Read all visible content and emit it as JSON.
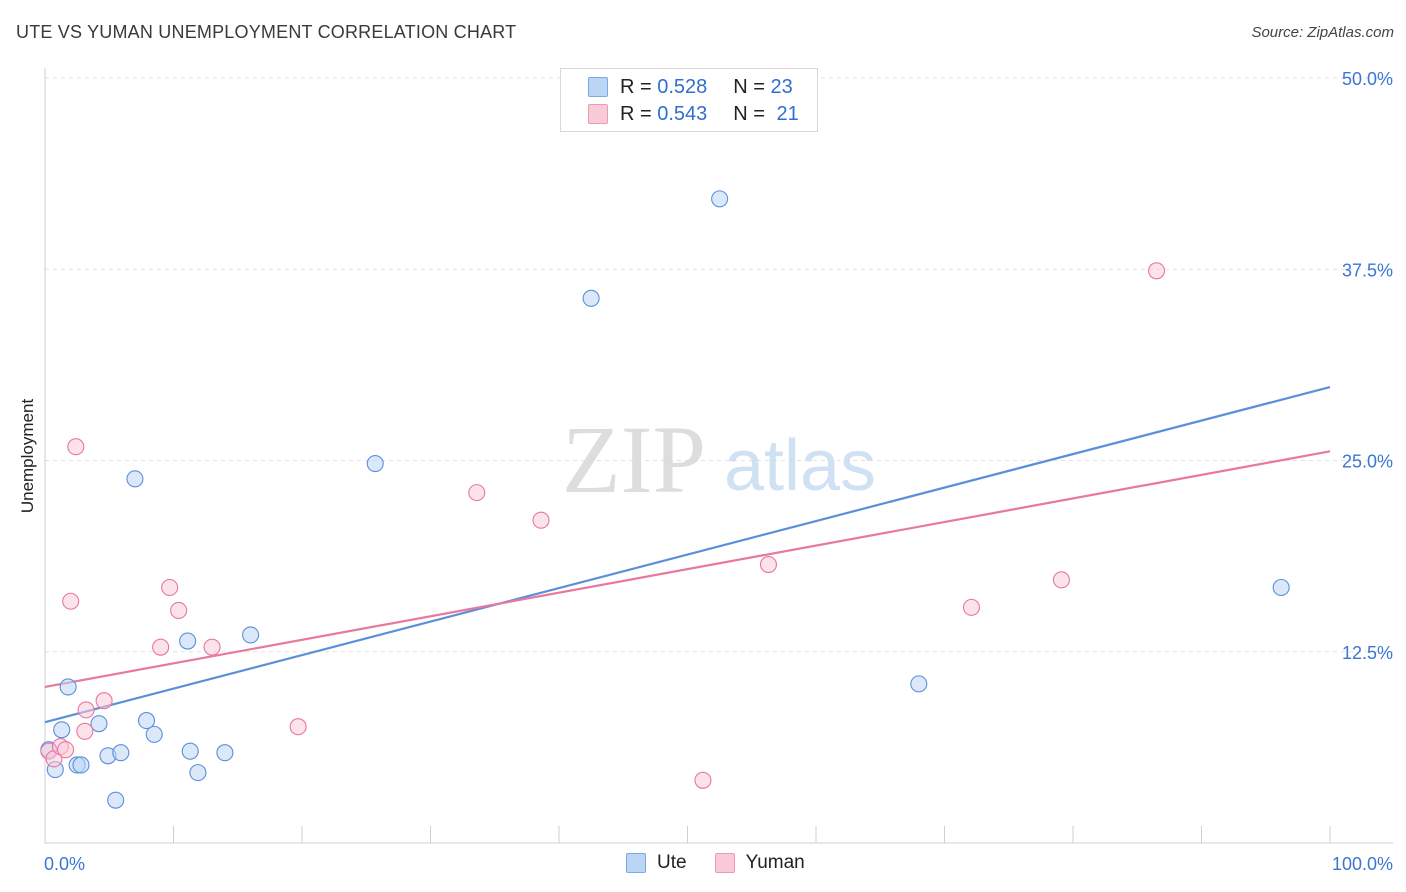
{
  "header": {
    "title": "UTE VS YUMAN UNEMPLOYMENT CORRELATION CHART",
    "source": "Source: ZipAtlas.com"
  },
  "watermark": {
    "zip": "ZIP",
    "atlas": "atlas"
  },
  "stats_legend": [
    {
      "r_label": "R = ",
      "r_value": "0.528",
      "n_label": "N = ",
      "n_value": "23",
      "color": "#5b8fd9"
    },
    {
      "r_label": "R = ",
      "r_value": "0.543",
      "n_label": "N = ",
      "n_value": "21",
      "color": "#e8789e"
    }
  ],
  "chart_data": {
    "type": "scatter",
    "title": "UTE VS YUMAN UNEMPLOYMENT CORRELATION CHART",
    "xlabel": "",
    "ylabel": "Unemployment",
    "xlim": [
      0,
      100
    ],
    "ylim": [
      0,
      50
    ],
    "x_tick_labels": [
      {
        "x": 0,
        "label": "0.0%"
      },
      {
        "x": 100,
        "label": "100.0%"
      }
    ],
    "y_tick_labels": [
      {
        "y": 12.5,
        "label": "12.5%"
      },
      {
        "y": 25.0,
        "label": "25.0%"
      },
      {
        "y": 37.5,
        "label": "37.5%"
      },
      {
        "y": 50.0,
        "label": "50.0%"
      }
    ],
    "grid": true,
    "legend_position": "bottom-center",
    "series": [
      {
        "name": "Ute",
        "color": "#5b8fd9",
        "fill": "#bcd5f5",
        "points": [
          [
            0.3,
            6.1
          ],
          [
            0.8,
            4.8
          ],
          [
            1.3,
            7.4
          ],
          [
            1.8,
            10.2
          ],
          [
            2.5,
            5.1
          ],
          [
            2.8,
            5.1
          ],
          [
            4.2,
            7.8
          ],
          [
            4.9,
            5.7
          ],
          [
            5.5,
            2.8
          ],
          [
            5.9,
            5.9
          ],
          [
            7.0,
            23.8
          ],
          [
            7.9,
            8.0
          ],
          [
            8.5,
            7.1
          ],
          [
            11.1,
            13.2
          ],
          [
            11.3,
            6.0
          ],
          [
            11.9,
            4.6
          ],
          [
            14.0,
            5.9
          ],
          [
            16.0,
            13.6
          ],
          [
            25.7,
            24.8
          ],
          [
            42.5,
            35.6
          ],
          [
            52.5,
            42.1
          ],
          [
            68.0,
            10.4
          ],
          [
            96.2,
            16.7
          ]
        ],
        "trend": {
          "x0": 0,
          "y0": 7.9,
          "x1": 100,
          "y1": 29.8
        }
      },
      {
        "name": "Yuman",
        "color": "#e8789e",
        "fill": "#f9cbd9",
        "points": [
          [
            0.3,
            6.0
          ],
          [
            0.7,
            5.5
          ],
          [
            1.2,
            6.3
          ],
          [
            1.6,
            6.1
          ],
          [
            2.0,
            15.8
          ],
          [
            2.4,
            25.9
          ],
          [
            3.1,
            7.3
          ],
          [
            3.2,
            8.7
          ],
          [
            4.6,
            9.3
          ],
          [
            9.0,
            12.8
          ],
          [
            9.7,
            16.7
          ],
          [
            10.4,
            15.2
          ],
          [
            13.0,
            12.8
          ],
          [
            19.7,
            7.6
          ],
          [
            33.6,
            22.9
          ],
          [
            38.6,
            21.1
          ],
          [
            51.2,
            4.1
          ],
          [
            56.3,
            18.2
          ],
          [
            72.1,
            15.4
          ],
          [
            79.1,
            17.2
          ],
          [
            86.5,
            37.4
          ]
        ],
        "trend": {
          "x0": 0,
          "y0": 10.2,
          "x1": 100,
          "y1": 25.6
        }
      }
    ]
  }
}
